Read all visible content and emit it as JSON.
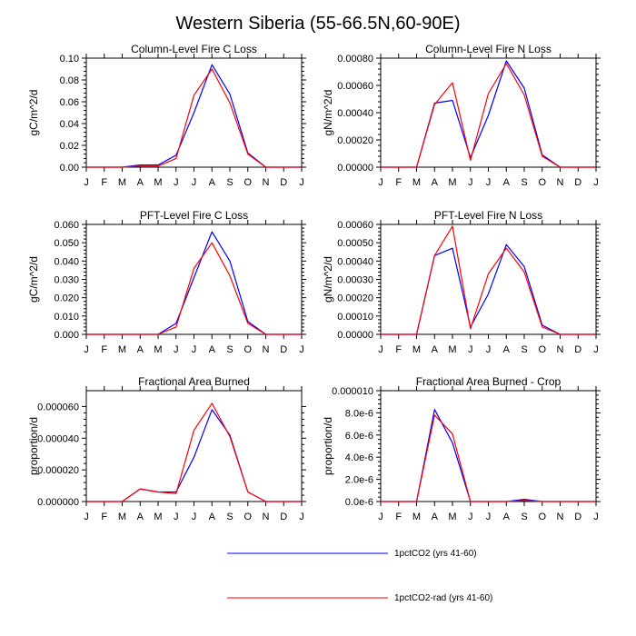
{
  "title": "Western Siberia (55-66.5N,60-90E)",
  "colors": {
    "series_1": "#0000ff",
    "series_2": "#ff0000",
    "axis": "#000000"
  },
  "legend": [
    {
      "label": "1pctCO2 (yrs 41-60)",
      "color": "#0000ff"
    },
    {
      "label": "1pctCO2-rad (yrs 41-60)",
      "color": "#ff0000"
    }
  ],
  "chart_data": [
    {
      "type": "line",
      "title": "Column-Level Fire C Loss",
      "ylabel": "gC/m^2/d",
      "categories": [
        "J",
        "F",
        "M",
        "A",
        "M",
        "J",
        "J",
        "A",
        "S",
        "O",
        "N",
        "D",
        "J"
      ],
      "ylim": [
        0,
        0.1
      ],
      "yticks": [
        0,
        0.02,
        0.04,
        0.06,
        0.08,
        0.1
      ],
      "ytick_labels": [
        "0.00",
        "0.02",
        "0.04",
        "0.06",
        "0.08",
        "0.10"
      ],
      "series": [
        {
          "name": "1pctCO2 (yrs 41-60)",
          "values": [
            0,
            0,
            0,
            0.002,
            0.002,
            0.011,
            0.05,
            0.094,
            0.067,
            0.013,
            0,
            0,
            0
          ]
        },
        {
          "name": "1pctCO2-rad (yrs 41-60)",
          "values": [
            0,
            0,
            0,
            0.001,
            0.001,
            0.008,
            0.066,
            0.09,
            0.059,
            0.012,
            0,
            0,
            0
          ]
        }
      ]
    },
    {
      "type": "line",
      "title": "Column-Level Fire N Loss",
      "ylabel": "gN/m^2/d",
      "categories": [
        "J",
        "F",
        "M",
        "A",
        "M",
        "J",
        "J",
        "A",
        "S",
        "O",
        "N",
        "D",
        "J"
      ],
      "ylim": [
        0,
        0.0008
      ],
      "yticks": [
        0,
        0.0002,
        0.0004,
        0.0006,
        0.0008
      ],
      "ytick_labels": [
        "0.00000",
        "0.00020",
        "0.00040",
        "0.00060",
        "0.00080"
      ],
      "series": [
        {
          "name": "1pctCO2 (yrs 41-60)",
          "values": [
            0,
            0,
            0,
            0.00047,
            0.00049,
            7e-05,
            0.00038,
            0.00078,
            0.00058,
            9e-05,
            0,
            0,
            0
          ]
        },
        {
          "name": "1pctCO2-rad (yrs 41-60)",
          "values": [
            0,
            0,
            0,
            0.00046,
            0.00062,
            5e-05,
            0.00054,
            0.00076,
            0.00053,
            8e-05,
            0,
            0,
            0
          ]
        }
      ]
    },
    {
      "type": "line",
      "title": "PFT-Level Fire C Loss",
      "ylabel": "gC/m^2/d",
      "categories": [
        "J",
        "F",
        "M",
        "A",
        "M",
        "J",
        "J",
        "A",
        "S",
        "O",
        "N",
        "D",
        "J"
      ],
      "ylim": [
        0,
        0.06
      ],
      "yticks": [
        0,
        0.01,
        0.02,
        0.03,
        0.04,
        0.05,
        0.06
      ],
      "ytick_labels": [
        "0.000",
        "0.010",
        "0.020",
        "0.030",
        "0.040",
        "0.050",
        "0.060"
      ],
      "series": [
        {
          "name": "1pctCO2 (yrs 41-60)",
          "values": [
            0,
            0,
            0,
            0,
            0,
            0.006,
            0.031,
            0.056,
            0.04,
            0.007,
            0,
            0,
            0
          ]
        },
        {
          "name": "1pctCO2-rad (yrs 41-60)",
          "values": [
            0,
            0,
            0,
            0,
            0,
            0.004,
            0.036,
            0.05,
            0.032,
            0.006,
            0,
            0,
            0
          ]
        }
      ]
    },
    {
      "type": "line",
      "title": "PFT-Level Fire N Loss",
      "ylabel": "gN/m^2/d",
      "categories": [
        "J",
        "F",
        "M",
        "A",
        "M",
        "J",
        "J",
        "A",
        "S",
        "O",
        "N",
        "D",
        "J"
      ],
      "ylim": [
        0,
        0.0006
      ],
      "yticks": [
        0,
        0.0001,
        0.0002,
        0.0003,
        0.0004,
        0.0005,
        0.0006
      ],
      "ytick_labels": [
        "0.00000",
        "0.00010",
        "0.00020",
        "0.00030",
        "0.00040",
        "0.00050",
        "0.00060"
      ],
      "series": [
        {
          "name": "1pctCO2 (yrs 41-60)",
          "values": [
            0,
            0,
            0,
            0.00043,
            0.00047,
            4e-05,
            0.00022,
            0.00049,
            0.00037,
            5e-05,
            0,
            0,
            0
          ]
        },
        {
          "name": "1pctCO2-rad (yrs 41-60)",
          "values": [
            0,
            0,
            0,
            0.00043,
            0.00059,
            3e-05,
            0.00033,
            0.00047,
            0.00034,
            4e-05,
            0,
            0,
            0
          ]
        }
      ]
    },
    {
      "type": "line",
      "title": "Fractional Area Burned",
      "ylabel": "proportion/d",
      "categories": [
        "J",
        "F",
        "M",
        "A",
        "M",
        "J",
        "J",
        "A",
        "S",
        "O",
        "N",
        "D",
        "J"
      ],
      "ylim": [
        0,
        7e-05
      ],
      "yticks": [
        0,
        2e-05,
        4e-05,
        6e-05
      ],
      "ytick_labels": [
        "0.000000",
        "0.000020",
        "0.000040",
        "0.000060"
      ],
      "series": [
        {
          "name": "1pctCO2 (yrs 41-60)",
          "values": [
            0,
            0,
            0,
            8e-06,
            6e-06,
            6e-06,
            2.8e-05,
            5.8e-05,
            4.2e-05,
            6e-06,
            0,
            0,
            0
          ]
        },
        {
          "name": "1pctCO2-rad (yrs 41-60)",
          "values": [
            0,
            0,
            0,
            8e-06,
            6e-06,
            5e-06,
            4.5e-05,
            6.2e-05,
            4.1e-05,
            6e-06,
            0,
            0,
            0
          ]
        }
      ]
    },
    {
      "type": "line",
      "title": "Fractional Area Burned - Crop",
      "ylabel": "proportion/d",
      "categories": [
        "J",
        "F",
        "M",
        "A",
        "M",
        "J",
        "J",
        "A",
        "S",
        "O",
        "N",
        "D",
        "J"
      ],
      "ylim": [
        0,
        1e-05
      ],
      "yticks": [
        0,
        2e-06,
        4e-06,
        6e-06,
        8e-06,
        1e-05
      ],
      "ytick_labels": [
        "0.0e-6",
        "2.0e-6",
        "4.0e-6",
        "6.0e-6",
        "8.0e-6",
        "0.000010"
      ],
      "series": [
        {
          "name": "1pctCO2 (yrs 41-60)",
          "values": [
            0,
            0,
            0,
            8.3e-06,
            5.3e-06,
            0,
            0,
            0,
            2e-07,
            0,
            0,
            0,
            0
          ]
        },
        {
          "name": "1pctCO2-rad (yrs 41-60)",
          "values": [
            0,
            0,
            0,
            7.8e-06,
            6.1e-06,
            0,
            0,
            0,
            1e-07,
            0,
            0,
            0,
            0
          ]
        }
      ]
    }
  ]
}
